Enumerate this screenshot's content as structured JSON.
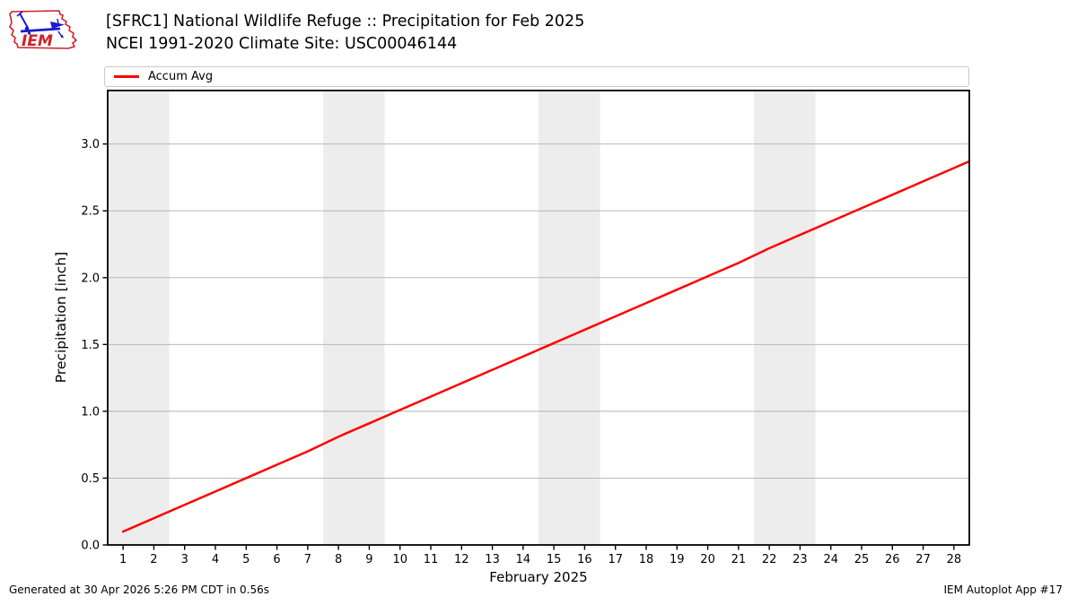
{
  "header": {
    "logo_text": "IEM"
  },
  "legend": {
    "items": [
      {
        "label": "Accum Avg",
        "color": "#ff0000"
      }
    ]
  },
  "footer": {
    "left": "Generated at 30 Apr 2026 5:26 PM CDT in 0.56s",
    "right": "IEM Autoplot App #17"
  },
  "chart_data": {
    "type": "line",
    "title": "[SFRC1] National Wildlife Refuge :: Precipitation for Feb 2025",
    "subtitle": "NCEI 1991-2020 Climate Site: USC00046144",
    "xlabel": "February 2025",
    "ylabel": "Precipitation [inch]",
    "xlim": [
      0.5,
      28.5
    ],
    "ylim": [
      0,
      3.4
    ],
    "grid": "horizontal",
    "grid_color": "#b0b0b0",
    "band_color": "#ededed",
    "weekend_bands": [
      [
        0.5,
        2.5
      ],
      [
        7.5,
        9.5
      ],
      [
        14.5,
        16.5
      ],
      [
        21.5,
        23.5
      ]
    ],
    "xticks": [
      1,
      2,
      3,
      4,
      5,
      6,
      7,
      8,
      9,
      10,
      11,
      12,
      13,
      14,
      15,
      16,
      17,
      18,
      19,
      20,
      21,
      22,
      23,
      24,
      25,
      26,
      27,
      28
    ],
    "xtick_labels": [
      "1",
      "2",
      "3",
      "4",
      "5",
      "6",
      "7",
      "8",
      "9",
      "10",
      "11",
      "12",
      "13",
      "14",
      "15",
      "16",
      "17",
      "18",
      "19",
      "20",
      "21",
      "22",
      "23",
      "24",
      "25",
      "26",
      "27",
      "28"
    ],
    "yticks": [
      0,
      0.5,
      1.0,
      1.5,
      2.0,
      2.5,
      3.0
    ],
    "ytick_labels": [
      "0.0",
      "0.5",
      "1.0",
      "1.5",
      "2.0",
      "2.5",
      "3.0"
    ],
    "legend_position": "top-left-above-axes",
    "series": [
      {
        "name": "Accum Avg",
        "color": "#ff0000",
        "x": [
          1,
          2,
          3,
          4,
          5,
          6,
          7,
          8,
          9,
          10,
          11,
          12,
          13,
          14,
          15,
          16,
          17,
          18,
          19,
          20,
          21,
          22,
          23,
          24,
          25,
          26,
          27,
          28,
          28.5
        ],
        "y": [
          0.1,
          0.2,
          0.3,
          0.4,
          0.5,
          0.6,
          0.7,
          0.81,
          0.91,
          1.01,
          1.11,
          1.21,
          1.31,
          1.41,
          1.51,
          1.61,
          1.71,
          1.81,
          1.91,
          2.01,
          2.11,
          2.22,
          2.32,
          2.42,
          2.52,
          2.62,
          2.72,
          2.82,
          2.87
        ]
      }
    ]
  }
}
